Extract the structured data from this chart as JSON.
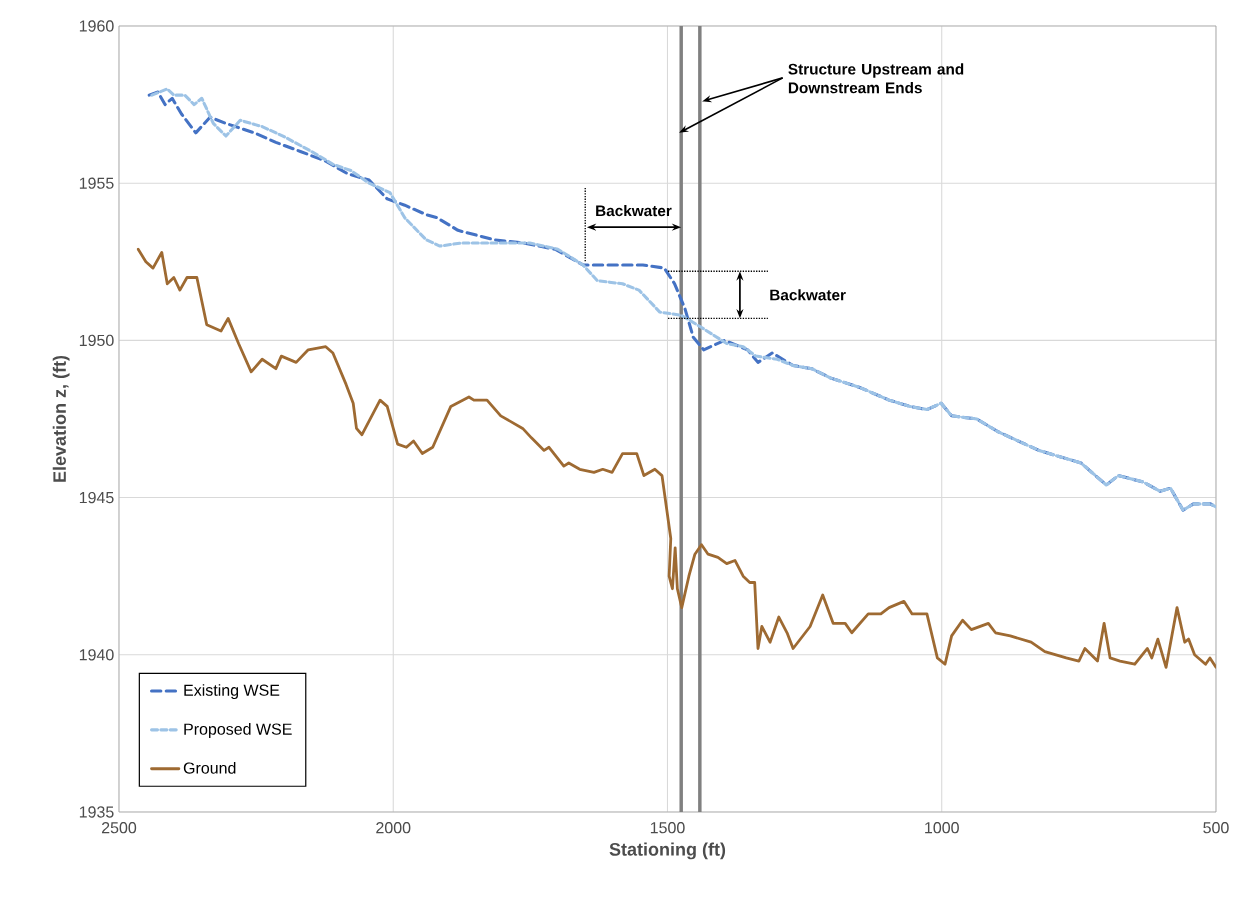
{
  "chart_data": {
    "type": "line",
    "xlabel": "Stationing (ft)",
    "ylabel": "Elevation z, (ft)",
    "xlim": [
      2500,
      500
    ],
    "xticks": [
      2500,
      2000,
      1500,
      1000,
      500
    ],
    "ylim": [
      1935,
      1960
    ],
    "yticks": [
      1935,
      1940,
      1945,
      1950,
      1955,
      1960
    ],
    "grid": true,
    "legend": "bottom left",
    "series": [
      {
        "name": "Existing WSE",
        "color": "#4472c4",
        "line_style": "dashed",
        "x": [
          2445,
          2429,
          2416,
          2403,
          2386,
          2360,
          2334,
          2305,
          2253,
          2214,
          2168,
          2123,
          2083,
          2044,
          2011,
          1979,
          1940,
          1920,
          1882,
          1816,
          1764,
          1705,
          1654,
          1650,
          1545,
          1506,
          1487,
          1468,
          1453,
          1434,
          1396,
          1354,
          1335,
          1309,
          1271,
          1237,
          1202,
          1149,
          1096,
          1058,
          1027,
          1001,
          982,
          936,
          898,
          823,
          746,
          700,
          678,
          633,
          602,
          583,
          560,
          541,
          510,
          500
        ],
        "values": [
          1957.8,
          1957.9,
          1957.5,
          1957.7,
          1957.2,
          1956.6,
          1957.1,
          1956.9,
          1956.6,
          1956.3,
          1956.0,
          1955.7,
          1955.3,
          1955.1,
          1954.5,
          1954.3,
          1954.0,
          1953.9,
          1953.5,
          1953.2,
          1953.1,
          1952.9,
          1952.4,
          1952.4,
          1952.4,
          1952.3,
          1951.8,
          1951.0,
          1950.1,
          1949.7,
          1950.0,
          1949.7,
          1949.3,
          1949.6,
          1949.2,
          1949.1,
          1948.8,
          1948.5,
          1948.1,
          1947.9,
          1947.8,
          1948.0,
          1947.6,
          1947.5,
          1947.1,
          1946.5,
          1946.1,
          1945.4,
          1945.7,
          1945.5,
          1945.2,
          1945.3,
          1944.6,
          1944.8,
          1944.8,
          1944.7
        ]
      },
      {
        "name": "Proposed WSE",
        "color": "#9dc3e6",
        "line_style": "dashed",
        "x": [
          2440,
          2412,
          2400,
          2380,
          2363,
          2349,
          2328,
          2305,
          2279,
          2239,
          2201,
          2148,
          2110,
          2077,
          2044,
          2006,
          1979,
          1940,
          1915,
          1875,
          1816,
          1751,
          1700,
          1654,
          1628,
          1582,
          1552,
          1514,
          1475,
          1437,
          1392,
          1362,
          1339,
          1300,
          1271,
          1237,
          1202,
          1149,
          1096,
          1058,
          1027,
          1001,
          982,
          936,
          898,
          823,
          746,
          700,
          678,
          633,
          602,
          583,
          560,
          541,
          510,
          500
        ],
        "values": [
          1957.8,
          1958.0,
          1957.8,
          1957.8,
          1957.5,
          1957.7,
          1956.9,
          1956.5,
          1957.0,
          1956.8,
          1956.5,
          1956.0,
          1955.6,
          1955.4,
          1955.0,
          1954.7,
          1953.9,
          1953.2,
          1953.0,
          1953.1,
          1953.1,
          1953.1,
          1952.9,
          1952.4,
          1951.9,
          1951.8,
          1951.6,
          1950.9,
          1950.8,
          1950.4,
          1949.9,
          1949.8,
          1949.5,
          1949.4,
          1949.2,
          1949.1,
          1948.8,
          1948.5,
          1948.1,
          1947.9,
          1947.8,
          1948.0,
          1947.6,
          1947.5,
          1947.1,
          1946.5,
          1946.1,
          1945.4,
          1945.7,
          1945.5,
          1945.2,
          1945.3,
          1944.6,
          1944.8,
          1944.8,
          1944.7
        ]
      },
      {
        "name": "Ground",
        "color": "#9e6a32",
        "line_style": "solid",
        "x": [
          2465,
          2451,
          2438,
          2422,
          2412,
          2400,
          2389,
          2376,
          2358,
          2340,
          2314,
          2301,
          2282,
          2259,
          2239,
          2214,
          2204,
          2177,
          2155,
          2123,
          2110,
          2086,
          2073,
          2067,
          2057,
          2024,
          2011,
          1992,
          1976,
          1963,
          1947,
          1928,
          1895,
          1862,
          1853,
          1829,
          1804,
          1784,
          1764,
          1748,
          1725,
          1716,
          1689,
          1680,
          1660,
          1634,
          1618,
          1601,
          1582,
          1556,
          1543,
          1523,
          1510,
          1494,
          1497,
          1491,
          1486,
          1482,
          1474,
          1461,
          1450,
          1438,
          1426,
          1408,
          1392,
          1377,
          1362,
          1350,
          1341,
          1335,
          1328,
          1313,
          1297,
          1282,
          1271,
          1240,
          1217,
          1198,
          1176,
          1164,
          1134,
          1111,
          1096,
          1069,
          1054,
          1027,
          1008,
          994,
          982,
          962,
          946,
          915,
          902,
          875,
          837,
          812,
          773,
          750,
          739,
          716,
          704,
          693,
          675,
          648,
          625,
          617,
          606,
          591,
          571,
          557,
          550,
          539,
          519,
          511,
          500
        ],
        "values": [
          1952.9,
          1952.5,
          1952.3,
          1952.8,
          1951.8,
          1952.0,
          1951.6,
          1952.0,
          1952.0,
          1950.5,
          1950.3,
          1950.7,
          1949.9,
          1949.0,
          1949.4,
          1949.1,
          1949.5,
          1949.3,
          1949.7,
          1949.8,
          1949.6,
          1948.6,
          1948.0,
          1947.2,
          1947.0,
          1948.1,
          1947.9,
          1946.7,
          1946.6,
          1946.8,
          1946.4,
          1946.6,
          1947.9,
          1948.2,
          1948.1,
          1948.1,
          1947.6,
          1947.4,
          1947.2,
          1946.9,
          1946.5,
          1946.6,
          1946.0,
          1946.1,
          1945.9,
          1945.8,
          1945.9,
          1945.8,
          1946.4,
          1946.4,
          1945.7,
          1945.9,
          1945.7,
          1943.7,
          1942.5,
          1942.1,
          1943.4,
          1942.1,
          1941.5,
          1942.5,
          1943.2,
          1943.5,
          1943.2,
          1943.1,
          1942.9,
          1943.0,
          1942.5,
          1942.3,
          1942.3,
          1940.2,
          1940.9,
          1940.4,
          1941.2,
          1940.7,
          1940.2,
          1940.9,
          1941.9,
          1941.0,
          1941.0,
          1940.7,
          1941.3,
          1941.3,
          1941.5,
          1941.7,
          1941.3,
          1941.3,
          1939.9,
          1939.7,
          1940.6,
          1941.1,
          1940.8,
          1941.0,
          1940.7,
          1940.6,
          1940.4,
          1940.1,
          1939.9,
          1939.8,
          1940.2,
          1939.8,
          1941.0,
          1939.9,
          1939.8,
          1939.7,
          1940.2,
          1939.9,
          1940.5,
          1939.6,
          1941.5,
          1940.4,
          1940.5,
          1940.0,
          1939.7,
          1939.9,
          1939.6
        ]
      }
    ],
    "ref_lines": [
      {
        "axis": "x",
        "value": 1475,
        "color": "#808080"
      },
      {
        "axis": "x",
        "value": 1441,
        "color": "#808080"
      }
    ],
    "annotations": [
      {
        "text": "Structure Upstream and Downstream Ends",
        "x": 1475,
        "y": 1956.6
      },
      "Backwater",
      {
        "text": "Backwater",
        "x": 1499,
        "y": 1952.2
      }
    ]
  }
}
